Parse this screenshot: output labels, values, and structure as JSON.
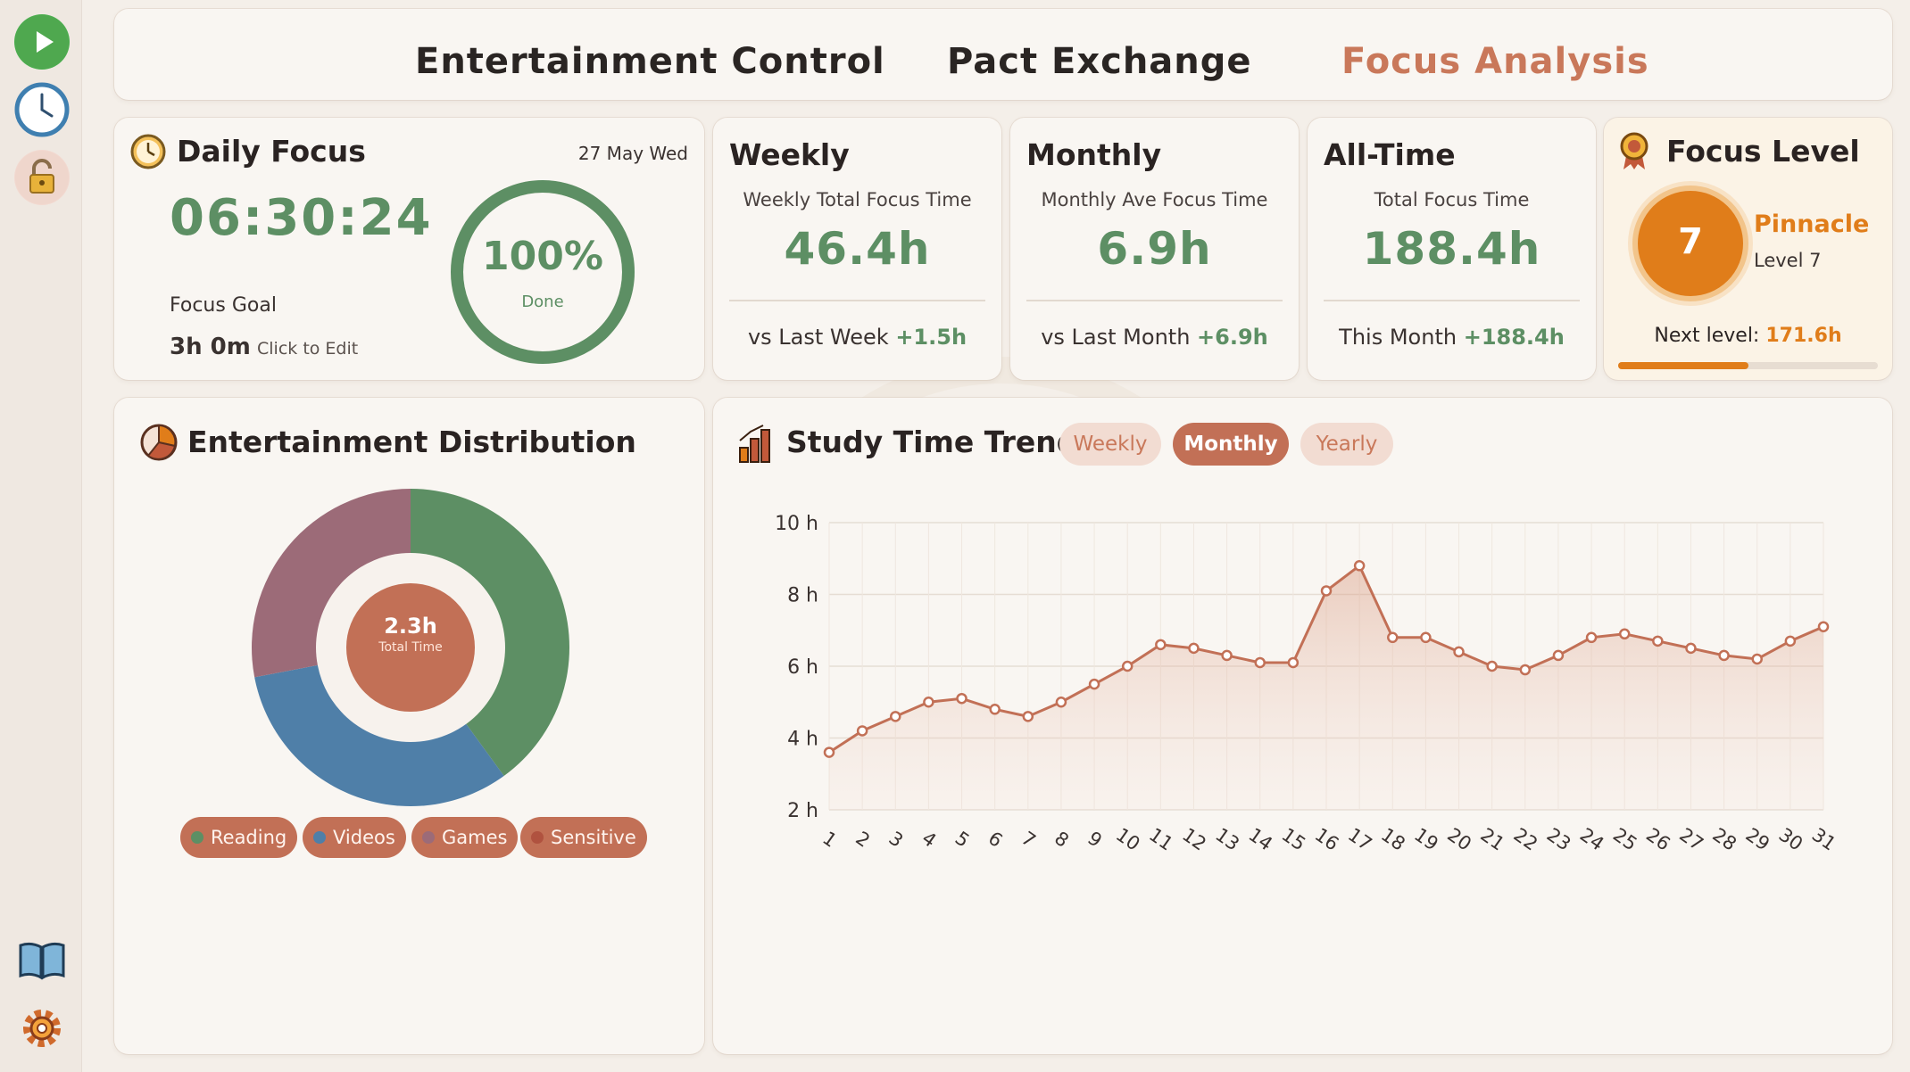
{
  "nav": {
    "tabs": [
      {
        "label": "Entertainment Control"
      },
      {
        "label": "Pact Exchange"
      },
      {
        "label": "Focus Analysis"
      }
    ]
  },
  "daily": {
    "title": "Daily Focus",
    "date": "27 May Wed",
    "time": "06:30:24",
    "goal_label": "Focus Goal",
    "goal_value": "3h 0m",
    "edit_hint": "Click to Edit",
    "progress": "100%",
    "progress_fraction": 1.0,
    "progress_label": "Done"
  },
  "weekly": {
    "title": "Weekly",
    "subtitle": "Weekly Total Focus Time",
    "value": "46.4h",
    "compare": "vs Last Week",
    "delta": "+1.5h"
  },
  "monthly": {
    "title": "Monthly",
    "subtitle": "Monthly Ave Focus Time",
    "value": "6.9h",
    "compare": "vs Last Month",
    "delta": "+6.9h"
  },
  "alltime": {
    "title": "All-Time",
    "subtitle": "Total Focus Time",
    "value": "188.4h",
    "compare": "This Month",
    "delta": "+188.4h"
  },
  "level": {
    "title": "Focus Level",
    "number": "7",
    "rank": "Pinnacle",
    "level_text": "Level 7",
    "next_label": "Next level:",
    "next_value": "171.6h",
    "progress_fraction": 0.5
  },
  "distribution": {
    "title": "Entertainment Distribution",
    "center_value": "2.3h",
    "center_label": "Total Time",
    "legend": [
      {
        "label": "Reading",
        "color": "#5d8f64"
      },
      {
        "label": "Videos",
        "color": "#4f7fa8"
      },
      {
        "label": "Games",
        "color": "#9c6b78"
      },
      {
        "label": "Sensitive",
        "color": "#b0523f"
      }
    ]
  },
  "trend": {
    "title": "Study Time Trend",
    "filters": [
      {
        "label": "Weekly",
        "active": false
      },
      {
        "label": "Monthly",
        "active": true
      },
      {
        "label": "Yearly",
        "active": false
      }
    ]
  },
  "colors": {
    "accent": "#c27056",
    "green": "#5d8f64",
    "orange": "#e07d1a"
  },
  "chart_data": [
    {
      "type": "pie",
      "categories": [
        "Reading",
        "Videos",
        "Games",
        "Sensitive"
      ],
      "values": [
        40,
        32,
        28,
        0
      ],
      "colors": [
        "#5d8f64",
        "#4f7fa8",
        "#9c6b78",
        "#b0523f"
      ]
    },
    {
      "type": "area",
      "x": [
        "1",
        "2",
        "3",
        "4",
        "5",
        "6",
        "7",
        "8",
        "9",
        "10",
        "11",
        "12",
        "13",
        "14",
        "15",
        "16",
        "17",
        "18",
        "19",
        "20",
        "21",
        "22",
        "23",
        "24",
        "25",
        "26",
        "27",
        "28",
        "29",
        "30",
        "31"
      ],
      "values": [
        3.6,
        4.2,
        4.6,
        5.0,
        5.1,
        4.8,
        4.6,
        5.0,
        5.5,
        6.0,
        6.6,
        6.5,
        6.3,
        6.1,
        6.1,
        8.1,
        8.8,
        6.8,
        6.8,
        6.4,
        6.0,
        5.9,
        6.3,
        6.8,
        6.9,
        6.7,
        6.5,
        6.3,
        6.2,
        6.7,
        7.1
      ],
      "yticks": [
        "2 h",
        "4 h",
        "6 h",
        "8 h",
        "10 h"
      ],
      "ylim": [
        2,
        10
      ],
      "grid": true,
      "color": "#c27056"
    }
  ]
}
